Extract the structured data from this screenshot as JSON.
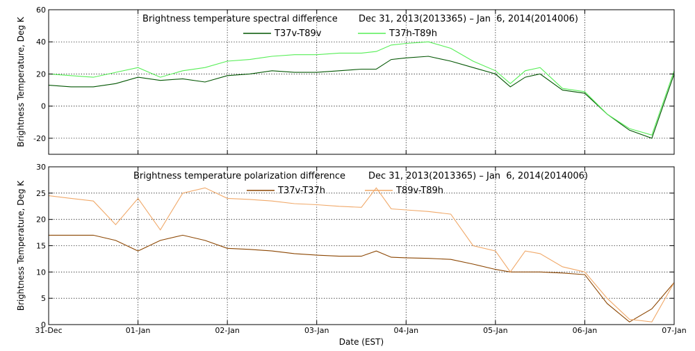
{
  "chart_data": [
    {
      "type": "line",
      "title": "Brightness temperature spectral difference",
      "date_range": "Dec 31, 2013(2013365) – Jan  6, 2014(2014006)",
      "ylabel": "Brightness Temperature, Deg K",
      "xlabel": "",
      "ylim": [
        -30,
        60
      ],
      "yticks": [
        -20,
        0,
        20,
        40,
        60
      ],
      "xlim": [
        "2013-12-31",
        "2014-01-07"
      ],
      "xticks": [
        "2013-12-31",
        "2014-01-01",
        "2014-01-02",
        "2014-01-03",
        "2014-01-04",
        "2014-01-05",
        "2014-01-06",
        "2014-01-07"
      ],
      "grid": true,
      "legend_position": "top-center",
      "series": [
        {
          "name": "T37v-T89v",
          "color": "#005500",
          "x": [
            "2013-12-31T00:00",
            "2013-12-31T06:00",
            "2013-12-31T12:00",
            "2013-12-31T18:00",
            "2014-01-01T00:00",
            "2014-01-01T06:00",
            "2014-01-01T12:00",
            "2014-01-01T18:00",
            "2014-01-02T00:00",
            "2014-01-02T06:00",
            "2014-01-02T12:00",
            "2014-01-02T18:00",
            "2014-01-03T00:00",
            "2014-01-03T06:00",
            "2014-01-03T12:00",
            "2014-01-03T16:00",
            "2014-01-03T20:00",
            "2014-01-04T00:00",
            "2014-01-04T06:00",
            "2014-01-04T12:00",
            "2014-01-04T18:00",
            "2014-01-05T00:00",
            "2014-01-05T04:00",
            "2014-01-05T08:00",
            "2014-01-05T12:00",
            "2014-01-05T18:00",
            "2014-01-06T00:00",
            "2014-01-06T06:00",
            "2014-01-06T12:00",
            "2014-01-06T18:00",
            "2014-01-07T00:00"
          ],
          "y": [
            13,
            12,
            12,
            14,
            18,
            16,
            17,
            15,
            19,
            20,
            22,
            21,
            21,
            22,
            23,
            23,
            29,
            30,
            31,
            28,
            24,
            20,
            12,
            18,
            20,
            10,
            8,
            -5,
            -15,
            -20,
            20
          ]
        },
        {
          "name": "T37h-T89h",
          "color": "#55ee55",
          "x": [
            "2013-12-31T00:00",
            "2013-12-31T06:00",
            "2013-12-31T12:00",
            "2013-12-31T18:00",
            "2014-01-01T00:00",
            "2014-01-01T06:00",
            "2014-01-01T12:00",
            "2014-01-01T18:00",
            "2014-01-02T00:00",
            "2014-01-02T06:00",
            "2014-01-02T12:00",
            "2014-01-02T18:00",
            "2014-01-03T00:00",
            "2014-01-03T06:00",
            "2014-01-03T12:00",
            "2014-01-03T16:00",
            "2014-01-03T20:00",
            "2014-01-04T00:00",
            "2014-01-04T06:00",
            "2014-01-04T12:00",
            "2014-01-04T18:00",
            "2014-01-05T00:00",
            "2014-01-05T04:00",
            "2014-01-05T08:00",
            "2014-01-05T12:00",
            "2014-01-05T18:00",
            "2014-01-06T00:00",
            "2014-01-06T06:00",
            "2014-01-06T12:00",
            "2014-01-06T18:00",
            "2014-01-07T00:00"
          ],
          "y": [
            20,
            19,
            18,
            21,
            24,
            18,
            22,
            24,
            28,
            29,
            31,
            32,
            32,
            33,
            33,
            34,
            38,
            39,
            40,
            36,
            28,
            22,
            14,
            22,
            24,
            11,
            9,
            -5,
            -14,
            -18,
            22
          ]
        }
      ]
    },
    {
      "type": "line",
      "title": "Brightness temperature polarization difference",
      "date_range": "Dec 31, 2013(2013365) – Jan  6, 2014(2014006)",
      "ylabel": "Brightness Temperature, Deg K",
      "xlabel": "Date (EST)",
      "ylim": [
        0,
        30
      ],
      "yticks": [
        0,
        5,
        10,
        15,
        20,
        25,
        30
      ],
      "xlim": [
        "2013-12-31",
        "2014-01-07"
      ],
      "xticks": [
        "2013-12-31",
        "2014-01-01",
        "2014-01-02",
        "2014-01-03",
        "2014-01-04",
        "2014-01-05",
        "2014-01-06",
        "2014-01-07"
      ],
      "xticklabels": [
        "31-Dec",
        "01-Jan",
        "02-Jan",
        "03-Jan",
        "04-Jan",
        "05-Jan",
        "06-Jan",
        "07-Jan"
      ],
      "grid": true,
      "legend_position": "top-center",
      "series": [
        {
          "name": "T37v-T37h",
          "color": "#8b4500",
          "x": [
            "2013-12-31T00:00",
            "2013-12-31T06:00",
            "2013-12-31T12:00",
            "2013-12-31T18:00",
            "2014-01-01T00:00",
            "2014-01-01T06:00",
            "2014-01-01T12:00",
            "2014-01-01T18:00",
            "2014-01-02T00:00",
            "2014-01-02T06:00",
            "2014-01-02T12:00",
            "2014-01-02T18:00",
            "2014-01-03T00:00",
            "2014-01-03T06:00",
            "2014-01-03T12:00",
            "2014-01-03T16:00",
            "2014-01-03T20:00",
            "2014-01-04T00:00",
            "2014-01-04T06:00",
            "2014-01-04T12:00",
            "2014-01-04T18:00",
            "2014-01-05T00:00",
            "2014-01-05T04:00",
            "2014-01-05T08:00",
            "2014-01-05T12:00",
            "2014-01-05T18:00",
            "2014-01-06T00:00",
            "2014-01-06T06:00",
            "2014-01-06T12:00",
            "2014-01-06T18:00",
            "2014-01-07T00:00"
          ],
          "y": [
            17,
            17,
            17,
            16,
            14,
            16,
            17,
            16,
            14.5,
            14.3,
            14,
            13.5,
            13.2,
            13,
            13,
            14,
            12.8,
            12.7,
            12.6,
            12.4,
            11.5,
            10.5,
            10,
            10,
            10,
            9.8,
            9.5,
            4,
            0.5,
            3,
            8
          ]
        },
        {
          "name": "T89v-T89h",
          "color": "#f0a868",
          "x": [
            "2013-12-31T00:00",
            "2013-12-31T06:00",
            "2013-12-31T12:00",
            "2013-12-31T18:00",
            "2014-01-01T00:00",
            "2014-01-01T06:00",
            "2014-01-01T12:00",
            "2014-01-01T18:00",
            "2014-01-02T00:00",
            "2014-01-02T06:00",
            "2014-01-02T12:00",
            "2014-01-02T18:00",
            "2014-01-03T00:00",
            "2014-01-03T06:00",
            "2014-01-03T12:00",
            "2014-01-03T16:00",
            "2014-01-03T20:00",
            "2014-01-04T00:00",
            "2014-01-04T06:00",
            "2014-01-04T12:00",
            "2014-01-04T18:00",
            "2014-01-05T00:00",
            "2014-01-05T04:00",
            "2014-01-05T08:00",
            "2014-01-05T12:00",
            "2014-01-05T18:00",
            "2014-01-06T00:00",
            "2014-01-06T06:00",
            "2014-01-06T12:00",
            "2014-01-06T18:00",
            "2014-01-07T00:00"
          ],
          "y": [
            24.5,
            24,
            23.5,
            19,
            24,
            18,
            25,
            26,
            24,
            23.8,
            23.5,
            23,
            22.8,
            22.5,
            22.3,
            26,
            22,
            21.8,
            21.5,
            21,
            15,
            14,
            10,
            14,
            13.5,
            11,
            10,
            5,
            1,
            0.5,
            8
          ]
        }
      ]
    }
  ]
}
